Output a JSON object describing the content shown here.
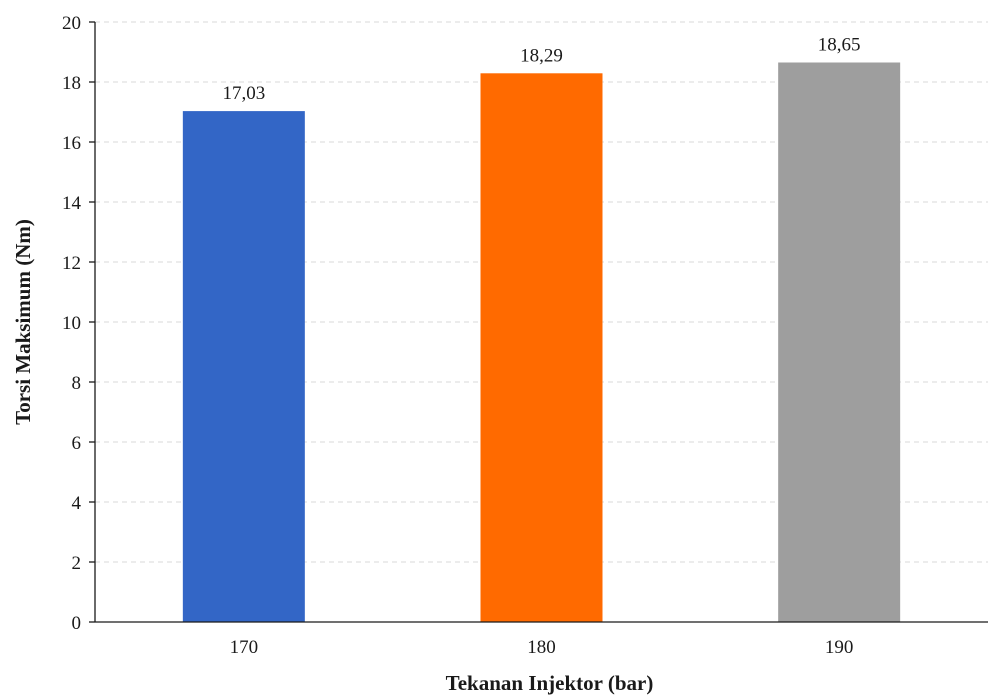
{
  "chart_data": {
    "type": "bar",
    "categories": [
      "170",
      "180",
      "190"
    ],
    "values": [
      17.03,
      18.29,
      18.65
    ],
    "value_labels": [
      "17,03",
      "18,29",
      "18,65"
    ],
    "bar_colors": [
      "#3366c6",
      "#ff6a00",
      "#9e9e9e"
    ],
    "title": "",
    "xlabel": "Tekanan Injektor (bar)",
    "ylabel": "Torsi Maksimum (Nm)",
    "ylim": [
      0,
      20
    ],
    "yticks": [
      "0",
      "2",
      "4",
      "6",
      "8",
      "10",
      "12",
      "14",
      "16",
      "18",
      "20"
    ],
    "grid": true,
    "legend": "none"
  }
}
